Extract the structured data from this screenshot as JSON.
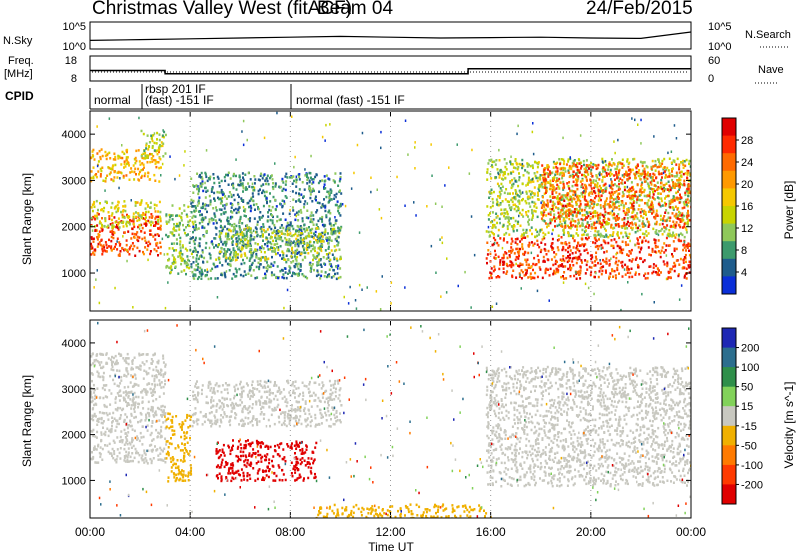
{
  "header": {
    "title": "Christmas Valley West (fitACF)",
    "beam": "Beam 04",
    "date": "24/Feb/2015"
  },
  "noise_panel": {
    "left_label": "N.Sky",
    "left_ticks": [
      "10^5",
      "10^0"
    ],
    "right_label": "N.Search",
    "right_ticks": [
      "10^5",
      "10^0"
    ]
  },
  "freq_panel": {
    "left_label_1": "Freq.",
    "left_label_2": "[MHz]",
    "left_ticks": [
      "18",
      "8"
    ],
    "right_label": "Nave",
    "right_ticks": [
      "60",
      "0"
    ]
  },
  "cpid": {
    "label": "CPID",
    "segments": [
      "normal",
      "rbsp 201 IF",
      "(fast) -151 IF",
      "normal (fast) -151 IF"
    ]
  },
  "power_colorbar": {
    "label": "Power [dB]",
    "ticks": [
      "28",
      "24",
      "20",
      "16",
      "12",
      "8",
      "4"
    ],
    "colors": [
      "#e00000",
      "#ff2a00",
      "#ff6a00",
      "#ff9900",
      "#f5c800",
      "#c8d400",
      "#8fc85a",
      "#3c9a6c",
      "#1e5c8c",
      "#0a2fd8"
    ]
  },
  "velocity_colorbar": {
    "label": "Velocity [m s^-1]",
    "ticks": [
      "200",
      "100",
      "50",
      "15",
      "-15",
      "-50",
      "-100",
      "-200"
    ],
    "colors": [
      "#1e28b4",
      "#2c6e8e",
      "#2f8f4a",
      "#82d25a",
      "#c8c8c0",
      "#f0b000",
      "#ff7a00",
      "#ff3a00",
      "#e00000"
    ]
  },
  "axes": {
    "ylabel": "Slant Range [km]",
    "yticks": [
      "4000",
      "3000",
      "2000",
      "1000"
    ],
    "xticks": [
      "00:00",
      "04:00",
      "08:00",
      "12:00",
      "16:00",
      "20:00",
      "00:00"
    ],
    "xlabel": "Time UT"
  },
  "chart_data": {
    "type": "heatmap",
    "xlabel": "Time UT",
    "ylabel": "Slant Range [km]",
    "xlim": [
      0,
      24
    ],
    "ylim": [
      180,
      4500
    ],
    "power_range_db": [
      0,
      30
    ],
    "velocity_range_ms": [
      -200,
      200
    ],
    "noise_series": {
      "name": "N.Sky",
      "x_hours": [
        0,
        2,
        4,
        6,
        8,
        10,
        12,
        14,
        16,
        18,
        20,
        22,
        24
      ],
      "log10_values": [
        1.4,
        1.6,
        1.8,
        2.0,
        2.2,
        2.4,
        2.2,
        2.0,
        2.1,
        2.2,
        2.0,
        1.9,
        3.5
      ]
    },
    "frequency_series": {
      "name": "Freq.",
      "x_hours": [
        0,
        3.0,
        3.0,
        15.1,
        15.1,
        24
      ],
      "values_mhz": [
        13.5,
        13.5,
        11.8,
        11.8,
        14.5,
        14.5
      ]
    },
    "cpid_segments": [
      {
        "label": "normal",
        "start_hour": 0.0,
        "end_hour": 1.8
      },
      {
        "label": "rbsp 201 IF / (fast) -151 IF",
        "start_hour": 1.8,
        "end_hour": 7.9
      },
      {
        "label": "normal (fast) -151 IF",
        "start_hour": 7.9,
        "end_hour": 24.0
      }
    ],
    "power_regions": [
      {
        "t": [
          0.0,
          2.8
        ],
        "r": [
          1400,
          2300
        ],
        "db": 26
      },
      {
        "t": [
          0.0,
          2.8
        ],
        "r": [
          2000,
          2600
        ],
        "db": 14
      },
      {
        "t": [
          0.0,
          2.8
        ],
        "r": [
          3000,
          3700
        ],
        "db": 18
      },
      {
        "t": [
          2.0,
          3.0
        ],
        "r": [
          3500,
          4100
        ],
        "db": 12
      },
      {
        "t": [
          3.0,
          4.2
        ],
        "r": [
          1000,
          2500
        ],
        "db": 10
      },
      {
        "t": [
          4.0,
          10.0
        ],
        "r": [
          900,
          3200
        ],
        "db": 6
      },
      {
        "t": [
          5.0,
          10.0
        ],
        "r": [
          1300,
          2000
        ],
        "db": 12
      },
      {
        "t": [
          15.8,
          24.0
        ],
        "r": [
          900,
          1800
        ],
        "db": 26
      },
      {
        "t": [
          15.8,
          24.0
        ],
        "r": [
          1800,
          3500
        ],
        "db": 12
      },
      {
        "t": [
          18.0,
          24.0
        ],
        "r": [
          2000,
          3400
        ],
        "db": 24
      }
    ],
    "velocity_regions": [
      {
        "t": [
          0.0,
          3.0
        ],
        "r": [
          1400,
          3800
        ],
        "v": 0
      },
      {
        "t": [
          3.0,
          4.0
        ],
        "r": [
          1000,
          2500
        ],
        "v": -60
      },
      {
        "t": [
          5.0,
          9.0
        ],
        "r": [
          1000,
          1900
        ],
        "v": -200
      },
      {
        "t": [
          4.0,
          10.0
        ],
        "r": [
          2200,
          3200
        ],
        "v": 0
      },
      {
        "t": [
          15.8,
          24.0
        ],
        "r": [
          900,
          3500
        ],
        "v": 0
      },
      {
        "t": [
          9.0,
          16.0
        ],
        "r": [
          180,
          500
        ],
        "v": -60
      }
    ]
  }
}
